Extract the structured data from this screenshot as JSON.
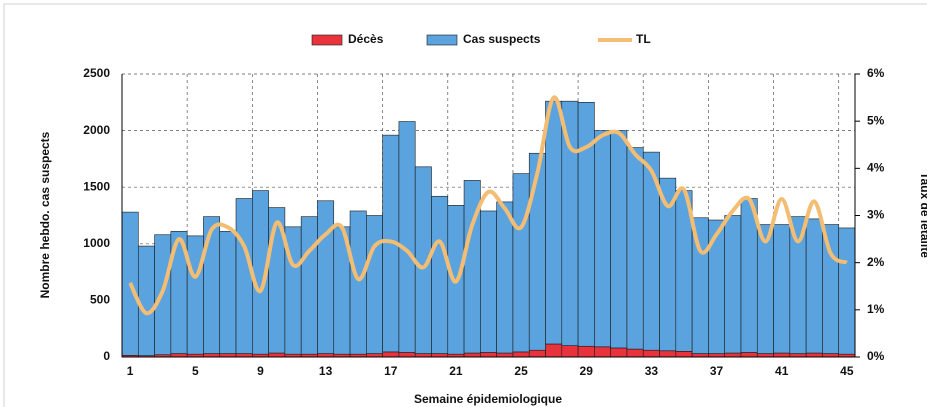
{
  "chart_data": {
    "type": "bar",
    "stacked": true,
    "x": [
      1,
      2,
      3,
      4,
      5,
      6,
      7,
      8,
      9,
      10,
      11,
      12,
      13,
      14,
      15,
      16,
      17,
      18,
      19,
      20,
      21,
      22,
      23,
      24,
      25,
      26,
      27,
      28,
      29,
      30,
      31,
      32,
      33,
      34,
      35,
      36,
      37,
      38,
      39,
      40,
      41,
      42,
      43,
      44,
      45
    ],
    "xlim": [
      0.5,
      45.5
    ],
    "xticks": [
      1,
      5,
      9,
      13,
      17,
      21,
      25,
      29,
      33,
      37,
      41,
      45
    ],
    "ylim": [
      0,
      2500
    ],
    "yticks": [
      0,
      500,
      1000,
      1500,
      2000,
      2500
    ],
    "y2lim": [
      0,
      6
    ],
    "y2ticks": [
      {
        "value": 0,
        "label": "0%"
      },
      {
        "value": 1,
        "label": "1%"
      },
      {
        "value": 2,
        "label": "2%"
      },
      {
        "value": 3,
        "label": "3%"
      },
      {
        "value": 4,
        "label": "4%"
      },
      {
        "value": 5,
        "label": "5%"
      },
      {
        "value": 6,
        "label": "6%"
      }
    ],
    "xlabel": "Semaine épidemiologique",
    "ylabel": "Nombre hebdo. cas suspects",
    "y2label": "Taux de létalité",
    "grid": true,
    "legend": "top",
    "series": [
      {
        "name": "Décès",
        "color": "#e8333c",
        "values": [
          15,
          12,
          20,
          30,
          25,
          30,
          30,
          30,
          25,
          35,
          25,
          25,
          30,
          25,
          25,
          30,
          45,
          40,
          30,
          30,
          25,
          35,
          40,
          35,
          45,
          60,
          115,
          100,
          95,
          90,
          80,
          70,
          60,
          55,
          50,
          30,
          30,
          35,
          40,
          30,
          35,
          30,
          35,
          30,
          25
        ]
      },
      {
        "name": "Cas suspects",
        "color": "#5ba3de",
        "values": [
          1265,
          968,
          1060,
          1080,
          1045,
          1210,
          1080,
          1370,
          1445,
          1285,
          1125,
          1215,
          1350,
          1125,
          1265,
          1220,
          1915,
          2040,
          1650,
          1390,
          1315,
          1525,
          1250,
          1335,
          1575,
          1740,
          2145,
          2160,
          2155,
          1910,
          1920,
          1780,
          1750,
          1525,
          1420,
          1200,
          1180,
          1215,
          1360,
          1140,
          1135,
          1210,
          1185,
          1140,
          1115
        ]
      },
      {
        "name": "TL",
        "color": "#f3bd74",
        "axis": "y2",
        "type": "line",
        "values": [
          1.57,
          0.93,
          1.4,
          2.5,
          1.7,
          2.7,
          2.75,
          2.35,
          1.4,
          2.85,
          1.95,
          2.25,
          2.6,
          2.75,
          1.65,
          2.35,
          2.45,
          2.25,
          1.9,
          2.45,
          1.6,
          2.8,
          3.5,
          3.15,
          2.75,
          3.9,
          5.5,
          4.45,
          4.45,
          4.7,
          4.75,
          4.3,
          3.95,
          3.2,
          3.55,
          2.25,
          2.6,
          3.1,
          3.35,
          2.45,
          3.35,
          2.45,
          3.3,
          2.2,
          2.0
        ]
      }
    ]
  }
}
